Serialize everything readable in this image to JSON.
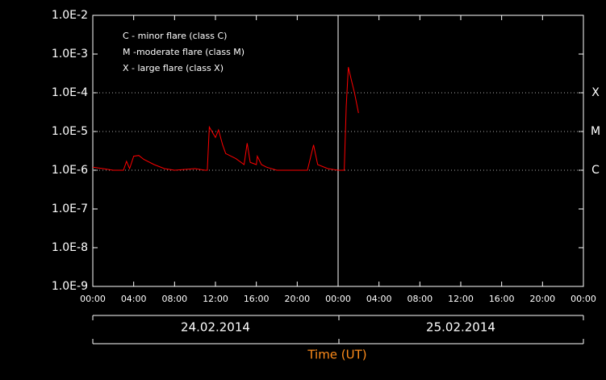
{
  "chart_data": {
    "type": "line",
    "log_y": true,
    "ylim": [
      1e-09,
      0.01
    ],
    "yticks": [
      {
        "value": 1e-09,
        "label": "1.0E-9"
      },
      {
        "value": 1e-08,
        "label": "1.0E-8"
      },
      {
        "value": 1e-07,
        "label": "1.0E-7"
      },
      {
        "value": 1e-06,
        "label": "1.0E-6"
      },
      {
        "value": 1e-05,
        "label": "1.0E-5"
      },
      {
        "value": 0.0001,
        "label": "1.0E-4"
      },
      {
        "value": 0.001,
        "label": "1.0E-3"
      },
      {
        "value": 0.01,
        "label": "1.0E-2"
      }
    ],
    "xlim": [
      0,
      48
    ],
    "xticks": [
      {
        "value": 0,
        "label": "00:00"
      },
      {
        "value": 4,
        "label": "04:00"
      },
      {
        "value": 8,
        "label": "08:00"
      },
      {
        "value": 12,
        "label": "12:00"
      },
      {
        "value": 16,
        "label": "16:00"
      },
      {
        "value": 20,
        "label": "20:00"
      },
      {
        "value": 24,
        "label": "00:00"
      },
      {
        "value": 28,
        "label": "04:00"
      },
      {
        "value": 32,
        "label": "08:00"
      },
      {
        "value": 36,
        "label": "12:00"
      },
      {
        "value": 40,
        "label": "16:00"
      },
      {
        "value": 44,
        "label": "20:00"
      },
      {
        "value": 48,
        "label": "00:00"
      }
    ],
    "xlabel": "Time (UT)",
    "dates": [
      "24.02.2014",
      "25.02.2014"
    ],
    "day_divider": 24,
    "levels": [
      {
        "value": 0.0001,
        "label": "X"
      },
      {
        "value": 1e-05,
        "label": "M"
      },
      {
        "value": 1e-06,
        "label": "C"
      }
    ],
    "legend_text": [
      "C - minor flare (class C)",
      "M -moderate flare (class M)",
      "X - large flare (class X)"
    ],
    "x": [
      0,
      1,
      2,
      3,
      3.3,
      3.6,
      4,
      4.5,
      5,
      6,
      7,
      8,
      9,
      10,
      11,
      11.2,
      11.4,
      12,
      12.3,
      12.7,
      13,
      14,
      14.8,
      15.1,
      15.4,
      16,
      16.1,
      16.5,
      17,
      18,
      19,
      20,
      21,
      21.6,
      22,
      23,
      24,
      24.6,
      24.8,
      25.0,
      25.3,
      25.6,
      26
    ],
    "series": [
      {
        "color": "#ff0000",
        "values": [
          1.2e-06,
          1.1e-06,
          1e-06,
          1e-06,
          1.7e-06,
          1.1e-06,
          2.3e-06,
          2.4e-06,
          1.9e-06,
          1.4e-06,
          1.1e-06,
          1e-06,
          1.05e-06,
          1.1e-06,
          1e-06,
          1e-06,
          1.3e-05,
          7e-06,
          1.1e-05,
          4.5e-06,
          2.7e-06,
          2e-06,
          1.4e-06,
          5e-06,
          1.6e-06,
          1.4e-06,
          2.3e-06,
          1.4e-06,
          1.2e-06,
          1e-06,
          1e-06,
          1e-06,
          1e-06,
          4.5e-06,
          1.4e-06,
          1.1e-06,
          1e-06,
          1e-06,
          4.6e-05,
          0.00046,
          0.00021,
          0.0001,
          3e-05
        ]
      }
    ]
  }
}
